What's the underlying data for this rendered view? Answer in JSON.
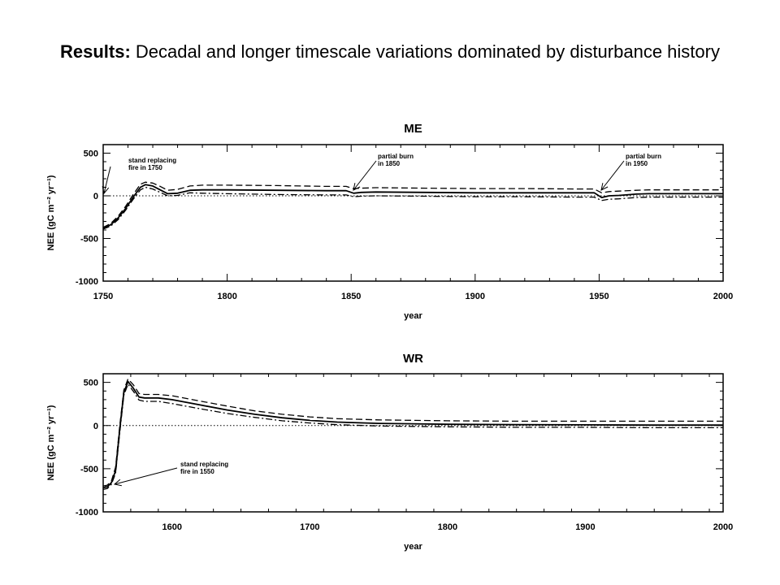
{
  "slide": {
    "title_bold": "Results:",
    "title_rest": " Decadal and longer timescale variations dominated by disturbance history"
  },
  "chart_data": [
    {
      "type": "line",
      "title": "ME",
      "xlabel": "year",
      "ylabel": "NEE (gC m⁻² yr⁻¹)",
      "xlim": [
        1750,
        2000
      ],
      "ylim": [
        -1000,
        600
      ],
      "xticks": [
        1750,
        1800,
        1850,
        1900,
        1950,
        2000
      ],
      "yticks": [
        500,
        0,
        -500,
        -1000
      ],
      "zero_line": "dotted",
      "annotations": [
        {
          "lines": [
            "stand replacing",
            "fire in 1750"
          ],
          "x": 1750,
          "y": -380
        },
        {
          "lines": [
            "partial burn",
            "in 1850"
          ],
          "x": 1850,
          "y": 50
        },
        {
          "lines": [
            "partial burn",
            "in 1950"
          ],
          "x": 1950,
          "y": 30
        }
      ],
      "series": [
        {
          "style": "solid",
          "x": [
            1750,
            1753,
            1756,
            1759,
            1762,
            1765,
            1767,
            1770,
            1773,
            1776,
            1780,
            1785,
            1790,
            1800,
            1820,
            1840,
            1848,
            1851,
            1854,
            1860,
            1880,
            1900,
            1920,
            1940,
            1948,
            1951,
            1954,
            1958,
            1965,
            1970,
            1980,
            2000
          ],
          "y": [
            -380,
            -340,
            -260,
            -150,
            -20,
            100,
            130,
            115,
            70,
            25,
            30,
            65,
            70,
            70,
            65,
            60,
            60,
            30,
            40,
            45,
            40,
            35,
            35,
            35,
            35,
            -20,
            0,
            5,
            20,
            25,
            25,
            25
          ]
        },
        {
          "style": "dashed",
          "x": [
            1750,
            1753,
            1756,
            1759,
            1762,
            1765,
            1767,
            1770,
            1773,
            1776,
            1780,
            1785,
            1790,
            1800,
            1820,
            1840,
            1848,
            1851,
            1854,
            1860,
            1880,
            1900,
            1920,
            1940,
            1948,
            1951,
            1954,
            1958,
            1965,
            1970,
            1980,
            2000
          ],
          "y": [
            -370,
            -325,
            -240,
            -125,
            10,
            135,
            160,
            150,
            110,
            65,
            75,
            115,
            125,
            125,
            120,
            110,
            110,
            85,
            90,
            95,
            90,
            85,
            85,
            80,
            80,
            35,
            50,
            55,
            65,
            70,
            70,
            70
          ]
        },
        {
          "style": "dashdot",
          "x": [
            1750,
            1753,
            1756,
            1759,
            1762,
            1765,
            1767,
            1770,
            1773,
            1776,
            1780,
            1785,
            1790,
            1800,
            1820,
            1840,
            1848,
            1851,
            1854,
            1860,
            1880,
            1900,
            1920,
            1940,
            1948,
            1951,
            1954,
            1958,
            1965,
            1970,
            1980,
            2000
          ],
          "y": [
            -390,
            -355,
            -280,
            -170,
            -45,
            70,
            100,
            80,
            40,
            0,
            5,
            35,
            30,
            25,
            15,
            10,
            10,
            -10,
            -5,
            0,
            -5,
            -10,
            -10,
            -15,
            -15,
            -55,
            -40,
            -35,
            -20,
            -15,
            -15,
            -15
          ]
        }
      ]
    },
    {
      "type": "line",
      "title": "WR",
      "xlabel": "year",
      "ylabel": "NEE (gC m⁻² yr⁻¹)",
      "xlim": [
        1550,
        2000
      ],
      "ylim": [
        -1000,
        600
      ],
      "xticks": [
        1600,
        1700,
        1800,
        1900,
        2000
      ],
      "yticks": [
        500,
        0,
        -500,
        -1000
      ],
      "zero_line": "dotted",
      "annotations": [
        {
          "lines": [
            "stand replacing",
            "fire in 1550"
          ],
          "x": 1550,
          "y": -720
        }
      ],
      "series": [
        {
          "style": "solid",
          "x": [
            1550,
            1553,
            1556,
            1559,
            1562,
            1565,
            1568,
            1572,
            1576,
            1580,
            1590,
            1600,
            1620,
            1640,
            1660,
            1680,
            1700,
            1720,
            1750,
            1800,
            1850,
            1900,
            1950,
            2000
          ],
          "y": [
            -720,
            -710,
            -660,
            -520,
            -50,
            380,
            510,
            430,
            330,
            320,
            320,
            300,
            240,
            180,
            130,
            90,
            60,
            40,
            25,
            15,
            10,
            8,
            5,
            5
          ]
        },
        {
          "style": "dashed",
          "x": [
            1550,
            1553,
            1556,
            1559,
            1562,
            1565,
            1568,
            1572,
            1576,
            1580,
            1590,
            1600,
            1620,
            1640,
            1660,
            1680,
            1700,
            1720,
            1750,
            1800,
            1850,
            1900,
            1950,
            2000
          ],
          "y": [
            -700,
            -690,
            -640,
            -480,
            -10,
            410,
            540,
            470,
            370,
            360,
            360,
            345,
            285,
            225,
            170,
            130,
            100,
            80,
            65,
            55,
            50,
            50,
            50,
            50
          ]
        },
        {
          "style": "dashdot",
          "x": [
            1550,
            1553,
            1556,
            1559,
            1562,
            1565,
            1568,
            1572,
            1576,
            1580,
            1590,
            1600,
            1620,
            1640,
            1660,
            1680,
            1700,
            1720,
            1750,
            1800,
            1850,
            1900,
            1950,
            2000
          ],
          "y": [
            -740,
            -730,
            -680,
            -550,
            -90,
            350,
            480,
            395,
            295,
            280,
            280,
            255,
            195,
            140,
            95,
            55,
            30,
            10,
            -5,
            -15,
            -20,
            -20,
            -25,
            -25
          ]
        }
      ]
    }
  ]
}
